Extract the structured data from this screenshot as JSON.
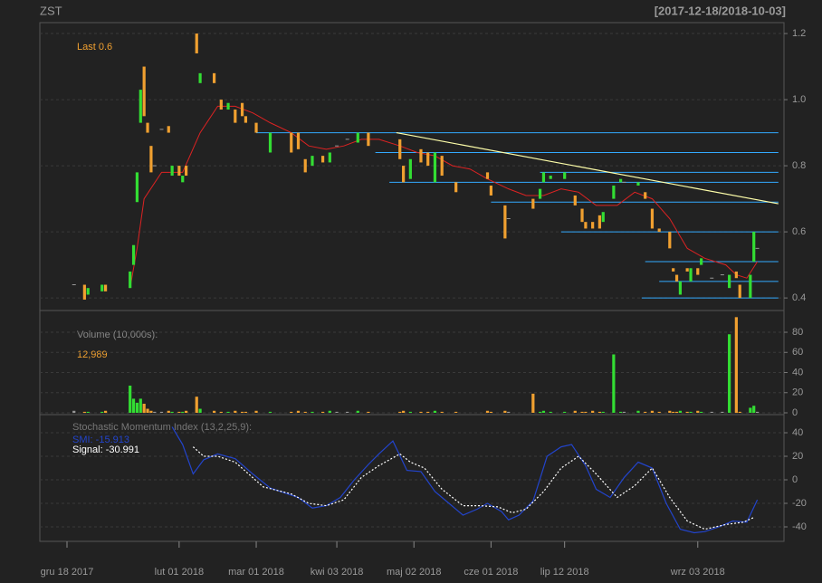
{
  "chart_data": [
    {
      "type": "candlestick",
      "title": "ZST",
      "subtitle": "[2017-12-18/2018-10-03]",
      "annotation": "Last 0.6",
      "xlim": [
        -7.75,
        204.6
      ],
      "xticks": [
        {
          "value": 0,
          "label": "gru 18 2017"
        },
        {
          "value": 32,
          "label": "lut 01 2018"
        },
        {
          "value": 54,
          "label": "mar 01 2018"
        },
        {
          "value": 77,
          "label": "kwi 03 2018"
        },
        {
          "value": 99,
          "label": "maj 02 2018"
        },
        {
          "value": 121,
          "label": "cze 01 2018"
        },
        {
          "value": 142,
          "label": "lip 12 2018"
        },
        {
          "value": 180,
          "label": "wrz 03 2018"
        }
      ],
      "ylim": [
        0.362,
        1.233
      ],
      "yticks": [
        0.4,
        0.6,
        0.8,
        {
          "value": 1.0,
          "label": "1.0"
        },
        1.2
      ],
      "grid": true,
      "colors": {
        "up": "#33dd33",
        "down": "#f0a030",
        "flat": "#999999"
      },
      "x": [
        2,
        5,
        6,
        10,
        11,
        18,
        19,
        20,
        21,
        22,
        23,
        24,
        25,
        27,
        29,
        30,
        32,
        33,
        34,
        37,
        38,
        42,
        44,
        46,
        48,
        50,
        51,
        54,
        58,
        64,
        66,
        68,
        70,
        73,
        75,
        77,
        80,
        83,
        86,
        95,
        96,
        98,
        101,
        103,
        105,
        107,
        111,
        120,
        121,
        125,
        126,
        133,
        135,
        136,
        138,
        142,
        145,
        147,
        148,
        150,
        152,
        153,
        156,
        158,
        159,
        163,
        165,
        167,
        169,
        172,
        173,
        174,
        175,
        177,
        178,
        180,
        181,
        184,
        187,
        189,
        191,
        192,
        195,
        196,
        197
      ],
      "open": [
        0.44,
        0.44,
        0.41,
        0.42,
        0.44,
        0.43,
        0.5,
        0.69,
        0.93,
        1.1,
        0.93,
        0.86,
        0.8,
        0.91,
        0.92,
        0.77,
        0.8,
        0.75,
        0.8,
        1.2,
        1.05,
        1.08,
        1.0,
        0.97,
        0.97,
        0.99,
        0.95,
        0.93,
        0.84,
        0.9,
        0.9,
        0.82,
        0.8,
        0.83,
        0.81,
        0.86,
        0.88,
        0.87,
        0.9,
        0.88,
        0.8,
        0.76,
        0.85,
        0.84,
        0.75,
        0.83,
        0.75,
        0.78,
        0.74,
        0.68,
        0.64,
        0.7,
        0.7,
        0.75,
        0.76,
        0.76,
        0.71,
        0.67,
        0.63,
        0.63,
        0.65,
        0.63,
        0.7,
        0.75,
        0.75,
        0.74,
        0.72,
        0.67,
        0.61,
        0.6,
        0.49,
        0.47,
        0.41,
        0.49,
        0.45,
        0.49,
        0.5,
        0.46,
        0.47,
        0.43,
        0.48,
        0.44,
        0.4,
        0.51,
        0.55
      ],
      "close": [
        0.44,
        0.395,
        0.43,
        0.44,
        0.42,
        0.48,
        0.56,
        0.78,
        1.03,
        0.95,
        0.9,
        0.78,
        0.8,
        0.91,
        0.9,
        0.8,
        0.77,
        0.77,
        0.77,
        1.14,
        1.08,
        1.05,
        0.97,
        0.99,
        0.93,
        0.95,
        0.93,
        0.9,
        0.9,
        0.84,
        0.85,
        0.78,
        0.83,
        0.81,
        0.84,
        0.86,
        0.88,
        0.9,
        0.86,
        0.82,
        0.75,
        0.82,
        0.81,
        0.8,
        0.84,
        0.77,
        0.72,
        0.76,
        0.71,
        0.58,
        0.64,
        0.67,
        0.73,
        0.78,
        0.77,
        0.78,
        0.68,
        0.63,
        0.61,
        0.61,
        0.61,
        0.66,
        0.74,
        0.76,
        0.75,
        0.75,
        0.7,
        0.61,
        0.6,
        0.55,
        0.48,
        0.45,
        0.45,
        0.48,
        0.49,
        0.47,
        0.52,
        0.46,
        0.47,
        0.47,
        0.46,
        0.4,
        0.47,
        0.6,
        0.55
      ],
      "sma": {
        "color": "#dd2222",
        "x": [
          18,
          20,
          22,
          27,
          33,
          38,
          43,
          48,
          53,
          58,
          64,
          69,
          74,
          79,
          84,
          89,
          95,
          100,
          105,
          110,
          115,
          120,
          126,
          131,
          136,
          141,
          146,
          151,
          157,
          162,
          167,
          172,
          177,
          182,
          188,
          191,
          194,
          197
        ],
        "values": [
          0.43,
          0.55,
          0.7,
          0.78,
          0.78,
          0.9,
          0.98,
          0.98,
          0.96,
          0.93,
          0.9,
          0.86,
          0.85,
          0.86,
          0.88,
          0.88,
          0.86,
          0.84,
          0.83,
          0.8,
          0.79,
          0.76,
          0.73,
          0.71,
          0.71,
          0.73,
          0.72,
          0.68,
          0.68,
          0.72,
          0.7,
          0.64,
          0.55,
          0.52,
          0.5,
          0.47,
          0.46,
          0.51
        ]
      },
      "levels": {
        "color": "#33aaff",
        "items": [
          {
            "value": 0.9,
            "x0": 54,
            "x1": 203
          },
          {
            "value": 0.84,
            "x0": 88,
            "x1": 203
          },
          {
            "value": 0.78,
            "x0": 135,
            "x1": 203
          },
          {
            "value": 0.75,
            "x0": 92,
            "x1": 203
          },
          {
            "value": 0.69,
            "x0": 121,
            "x1": 203
          },
          {
            "value": 0.6,
            "x0": 141,
            "x1": 203
          },
          {
            "value": 0.51,
            "x0": 165,
            "x1": 203
          },
          {
            "value": 0.45,
            "x0": 169,
            "x1": 203
          },
          {
            "value": 0.4,
            "x0": 164,
            "x1": 203
          }
        ]
      },
      "trendline": {
        "color": "#ffffaa",
        "x": [
          94,
          203
        ],
        "values": [
          0.9,
          0.685
        ]
      }
    },
    {
      "type": "bar",
      "title": "Volume (10,000s):",
      "annotation": "12,989",
      "ylim": [
        -1.8,
        101.6
      ],
      "yticks": [
        0,
        20,
        40,
        60,
        80
      ],
      "grid": true,
      "values": [
        2,
        1,
        1,
        1,
        2,
        27,
        14,
        10,
        14,
        9,
        4,
        2,
        1,
        1,
        2,
        1,
        1,
        1,
        2,
        16,
        4,
        2,
        1,
        1,
        2,
        1,
        1,
        2,
        1,
        1,
        2,
        1,
        1,
        1,
        2,
        1,
        1,
        2,
        1,
        1,
        2,
        1,
        1,
        1,
        2,
        1,
        1,
        2,
        1,
        2,
        1,
        19,
        1,
        2,
        1,
        1,
        2,
        1,
        1,
        2,
        1,
        1,
        58,
        1,
        1,
        2,
        1,
        2,
        1,
        2,
        1,
        1,
        2,
        1,
        1,
        2,
        1,
        1,
        1,
        78,
        95,
        1,
        5,
        7,
        1
      ]
    },
    {
      "type": "line",
      "title": "Stochastic Momentum Index (13,2,25,9):",
      "ylim": [
        -52.3,
        55.4
      ],
      "yticks": [
        -40,
        -20,
        0,
        20,
        40
      ],
      "grid": true,
      "series": [
        {
          "name": "SMI: -15.913",
          "color": "#2244cc",
          "dash": false,
          "x": [
            30,
            33,
            36,
            39,
            43,
            48,
            53,
            58,
            66,
            70,
            74,
            78,
            82,
            86,
            89,
            93,
            97,
            101,
            105,
            109,
            113,
            117,
            120,
            124,
            126,
            129,
            133,
            137,
            141,
            144,
            148,
            151,
            155,
            159,
            163,
            167,
            171,
            175,
            179,
            182,
            186,
            190,
            194,
            197
          ],
          "values": [
            45,
            30,
            5,
            17,
            22,
            18,
            5,
            -7,
            -15,
            -24,
            -22,
            -15,
            0,
            13,
            22,
            33,
            8,
            7,
            -10,
            -20,
            -30,
            -25,
            -20,
            -27,
            -34,
            -30,
            -18,
            20,
            28,
            30,
            12,
            -8,
            -15,
            2,
            15,
            10,
            -20,
            -42,
            -45,
            -44,
            -40,
            -35,
            -36,
            -17
          ]
        },
        {
          "name": "Signal: -30.991",
          "color": "#ffffff",
          "dash": true,
          "x": [
            36,
            39,
            43,
            48,
            56,
            64,
            69,
            74,
            79,
            84,
            89,
            95,
            98,
            102,
            107,
            113,
            118,
            123,
            127,
            131,
            136,
            141,
            146,
            151,
            157,
            162,
            167,
            172,
            177,
            182,
            188,
            193,
            196
          ],
          "values": [
            28,
            20,
            20,
            15,
            -6,
            -12,
            -20,
            -22,
            -17,
            2,
            12,
            22,
            15,
            10,
            -8,
            -22,
            -22,
            -23,
            -28,
            -25,
            -10,
            10,
            20,
            5,
            -15,
            -5,
            10,
            -15,
            -35,
            -42,
            -38,
            -36,
            -32
          ]
        }
      ]
    }
  ]
}
